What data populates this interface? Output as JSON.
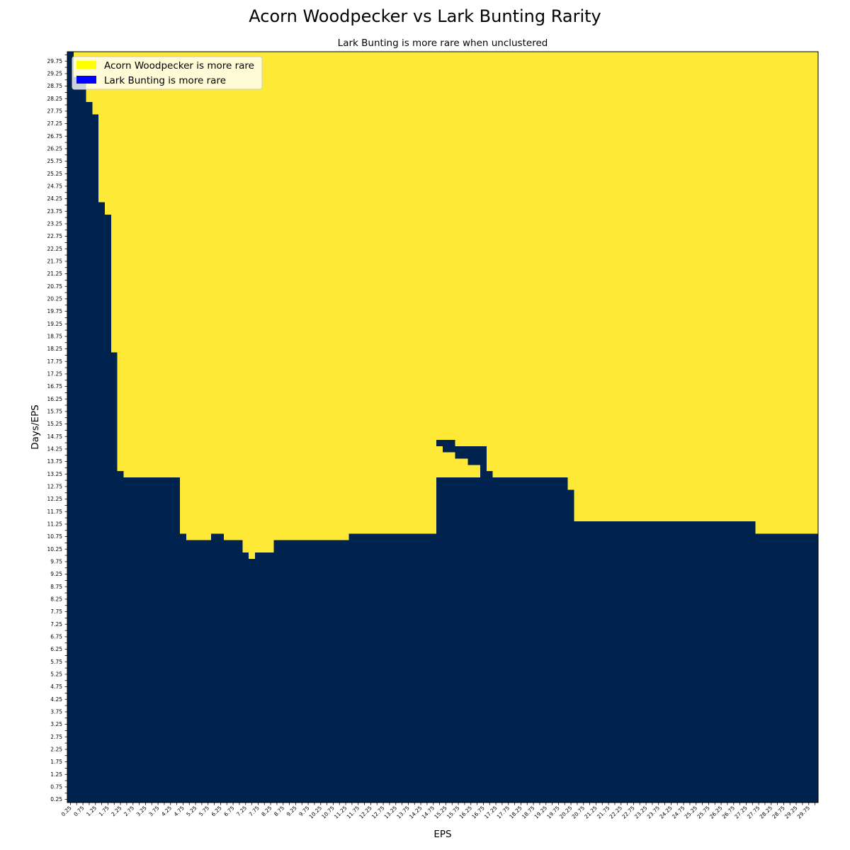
{
  "chart_data": {
    "type": "heatmap",
    "title": "Acorn Woodpecker vs Lark Bunting Rarity",
    "subtitle": "Lark Bunting is more rare when unclustered",
    "xlabel": "EPS",
    "ylabel": "Days/EPS",
    "x_start": 0.25,
    "x_step": 0.25,
    "x_count": 120,
    "y_start": 0.25,
    "y_step": 0.25,
    "y_count": 120,
    "tick_every": 2,
    "legend": {
      "placement": "upper-left",
      "entries": [
        {
          "label": "Acorn Woodpecker is more rare",
          "color": "#ffff00"
        },
        {
          "label": "Lark Bunting is more rare",
          "color": "#0000ff"
        }
      ]
    },
    "cell_colors": {
      "acorn_woodpecker_more_rare": "#fde936",
      "lark_bunting_more_rare": "#00224e"
    },
    "boundary_note": "For each EPS value (x), cells with Days/EPS <= boundary are 'Lark Bunting is more rare'; above are 'Acorn Woodpecker is more rare'.",
    "boundary": [
      {
        "x_from": 0.25,
        "x_to": 0.25,
        "y": 30.0
      },
      {
        "x_from": 0.5,
        "x_to": 0.75,
        "y": 29.0
      },
      {
        "x_from": 1.0,
        "x_to": 1.0,
        "y": 28.0
      },
      {
        "x_from": 1.25,
        "x_to": 1.25,
        "y": 27.5
      },
      {
        "x_from": 1.5,
        "x_to": 1.5,
        "y": 24.0
      },
      {
        "x_from": 1.75,
        "x_to": 1.75,
        "y": 23.5
      },
      {
        "x_from": 2.0,
        "x_to": 2.0,
        "y": 18.0
      },
      {
        "x_from": 2.25,
        "x_to": 2.25,
        "y": 13.25
      },
      {
        "x_from": 2.5,
        "x_to": 4.5,
        "y": 13.0
      },
      {
        "x_from": 4.75,
        "x_to": 4.75,
        "y": 10.75
      },
      {
        "x_from": 5.0,
        "x_to": 5.75,
        "y": 10.5
      },
      {
        "x_from": 6.0,
        "x_to": 6.25,
        "y": 10.75
      },
      {
        "x_from": 6.5,
        "x_to": 7.0,
        "y": 10.5
      },
      {
        "x_from": 7.25,
        "x_to": 7.25,
        "y": 10.0
      },
      {
        "x_from": 7.5,
        "x_to": 7.5,
        "y": 9.75
      },
      {
        "x_from": 7.75,
        "x_to": 8.25,
        "y": 10.0
      },
      {
        "x_from": 8.5,
        "x_to": 11.25,
        "y": 10.5
      },
      {
        "x_from": 11.5,
        "x_to": 14.75,
        "y": 10.75
      },
      {
        "x_from": 15.0,
        "x_to": 20.0,
        "y": 13.0
      },
      {
        "x_from": 20.25,
        "x_to": 20.25,
        "y": 12.5
      },
      {
        "x_from": 20.5,
        "x_to": 27.5,
        "y": 11.25
      },
      {
        "x_from": 27.75,
        "x_to": 30.0,
        "y": 10.75
      }
    ],
    "islands": [
      {
        "x_from": 15.0,
        "x_to": 15.5,
        "y_from": 14.5,
        "y_to": 14.5
      },
      {
        "x_from": 15.25,
        "x_to": 15.5,
        "y_from": 14.25,
        "y_to": 14.25
      },
      {
        "x_from": 15.75,
        "x_to": 16.75,
        "y_from": 14.25,
        "y_to": 14.25
      },
      {
        "x_from": 15.75,
        "x_to": 16.75,
        "y_from": 14.0,
        "y_to": 14.0
      },
      {
        "x_from": 16.25,
        "x_to": 16.75,
        "y_from": 13.75,
        "y_to": 13.75
      },
      {
        "x_from": 16.75,
        "x_to": 16.75,
        "y_from": 13.5,
        "y_to": 13.5
      },
      {
        "x_from": 16.75,
        "x_to": 17.0,
        "y_from": 13.25,
        "y_to": 13.25
      },
      {
        "x_from": 16.75,
        "x_to": 17.25,
        "y_from": 13.0,
        "y_to": 13.0
      }
    ]
  }
}
